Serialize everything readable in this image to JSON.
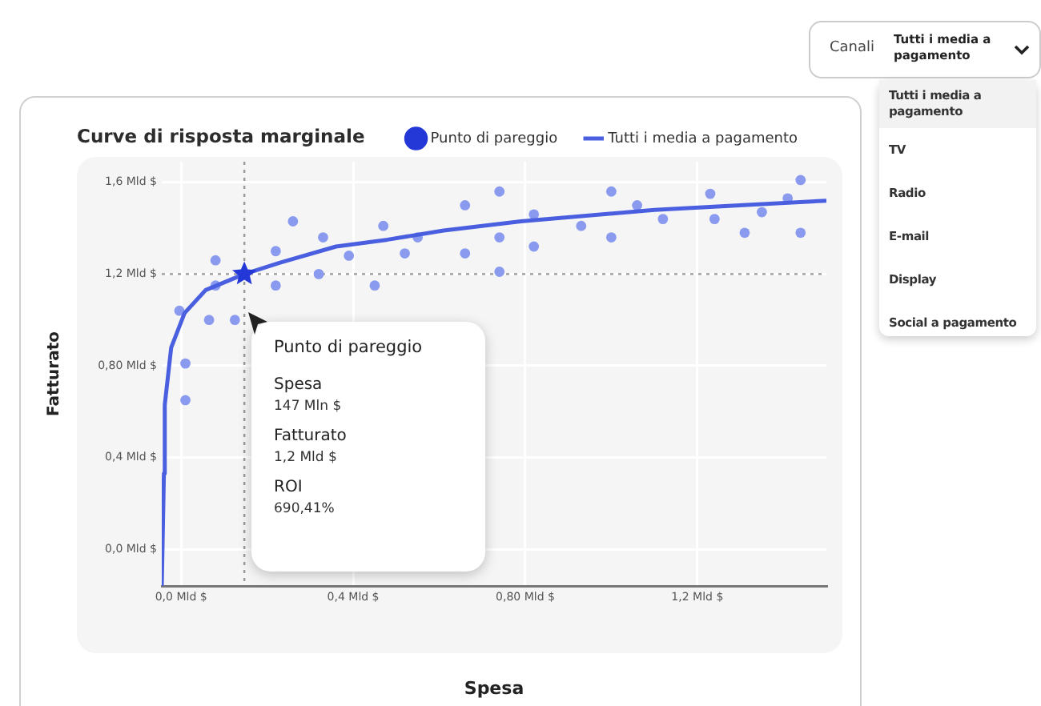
{
  "chart_data": {
    "type": "scatter",
    "title": "Curve di risposta marginale",
    "xlabel": "Spesa",
    "ylabel": "Fatturato",
    "xlim": [
      -0.045,
      1.5
    ],
    "ylim": [
      -0.16,
      1.69
    ],
    "xticks": [
      {
        "value": 0,
        "label": "0,0 Mld $"
      },
      {
        "value": 0.4,
        "label": "0,4 Mld $"
      },
      {
        "value": 0.8,
        "label": "0,80 Mld $"
      },
      {
        "value": 1.2,
        "label": "1,2 Mld $"
      }
    ],
    "yticks": [
      {
        "value": 0,
        "label": "0,0 Mld $"
      },
      {
        "value": 0.4,
        "label": "0,4 Mld $"
      },
      {
        "value": 0.8,
        "label": "0,80 Mld $"
      },
      {
        "value": 1.2,
        "label": "1,2 Mld $"
      },
      {
        "value": 1.6,
        "label": "1,6 Mld $"
      }
    ],
    "grid": true,
    "legend": "top right",
    "series": [
      {
        "color": "#8a9bef",
        "marker": "circle",
        "x": [
          -0.004,
          0.01,
          0.01,
          0.065,
          0.08,
          0.08,
          0.125,
          0.22,
          0.22,
          0.26,
          0.32,
          0.33,
          0.39,
          0.45,
          0.47,
          0.52,
          0.55,
          0.66,
          0.66,
          0.74,
          0.74,
          0.74,
          0.82,
          0.82,
          0.93,
          1.0,
          1.0,
          1.06,
          1.12,
          1.23,
          1.24,
          1.31,
          1.35,
          1.41,
          1.44,
          1.44
        ],
        "values": [
          1.04,
          0.81,
          0.65,
          1.0,
          1.26,
          1.15,
          1.0,
          1.3,
          1.15,
          1.43,
          1.2,
          1.36,
          1.28,
          1.15,
          1.41,
          1.29,
          1.36,
          1.5,
          1.29,
          1.56,
          1.36,
          1.21,
          1.46,
          1.32,
          1.41,
          1.56,
          1.36,
          1.5,
          1.44,
          1.55,
          1.44,
          1.38,
          1.47,
          1.53,
          1.61,
          1.38
        ]
      },
      {
        "name": "Punto di pareggio",
        "color": "#2438d8",
        "marker": "star",
        "x": [
          0.147
        ],
        "values": [
          1.2
        ]
      },
      {
        "type": "line",
        "name": "Tutti i media a pagamento",
        "color": "#4a5fe0",
        "marker": "none",
        "line_style": "solid",
        "x": [
          -0.045,
          -0.04,
          -0.038,
          -0.023,
          0.008,
          0.057,
          0.147,
          0.23,
          0.36,
          0.48,
          0.61,
          0.79,
          1.1,
          1.5
        ],
        "values": [
          -0.16,
          0.33,
          0.63,
          0.88,
          1.03,
          1.13,
          1.2,
          1.25,
          1.32,
          1.35,
          1.39,
          1.43,
          1.48,
          1.52
        ]
      }
    ],
    "ref_lines": [
      {
        "axis": "x",
        "value": 0.147,
        "color": "#999999",
        "line_style": "dotted"
      },
      {
        "axis": "y",
        "value": 1.2,
        "color": "#999999",
        "line_style": "dotted"
      }
    ],
    "annotations": [
      "Punto di pareggio",
      "Spesa",
      "147 Mln $",
      "Fatturato",
      "1,2 Mld $",
      "ROI",
      "690,41%",
      "Canali",
      "Tutti i media a pagamento",
      "Tutti i media a pagamento",
      "TV",
      "Radio",
      "E-mail",
      "Display",
      "Social a pagamento"
    ]
  }
}
